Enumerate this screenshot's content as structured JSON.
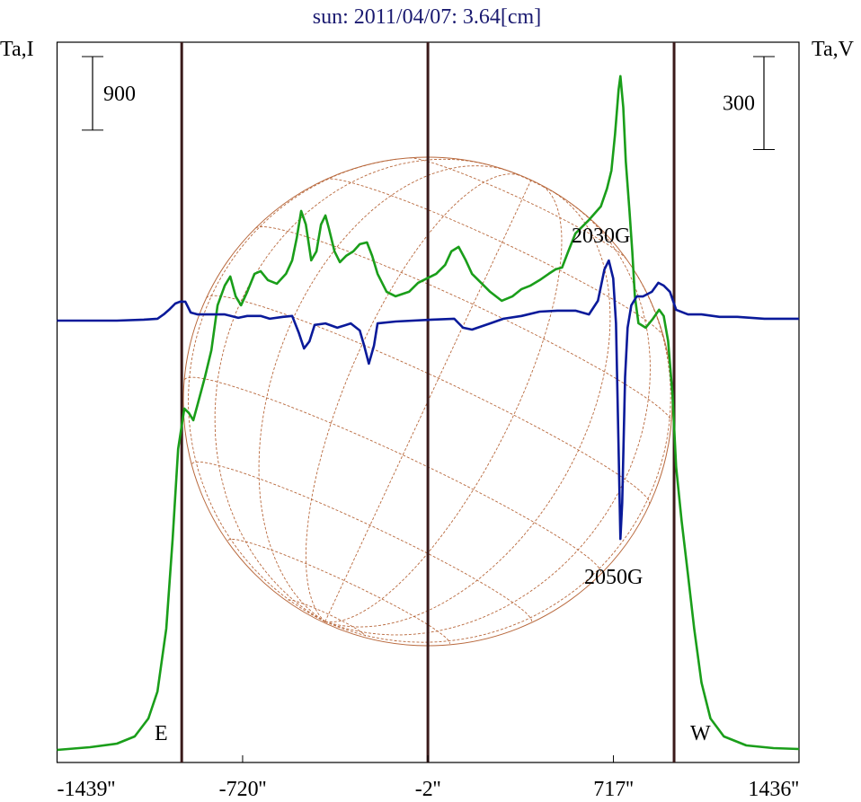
{
  "chart_data": {
    "type": "line",
    "title": "sun: 2011/04/07: 3.64[cm]",
    "ylabel": "Ta,I",
    "y2label": "Ta,V",
    "xlim": [
      -1439,
      1436
    ],
    "xticks": [
      {
        "value": -1439,
        "label": "-1439''"
      },
      {
        "value": -720,
        "label": "-720''"
      },
      {
        "value": -2,
        "label": "-2''"
      },
      {
        "value": 717,
        "label": "717''"
      },
      {
        "value": 1436,
        "label": "1436''"
      }
    ],
    "ylim": [
      0,
      8820
    ],
    "y2lim": [
      -1430,
      896
    ],
    "scale_bars": [
      {
        "value": 900,
        "axis": "y"
      },
      {
        "value": 300,
        "axis": "y2"
      }
    ],
    "limb_lines": [
      -956,
      -2,
      952
    ],
    "annotations": [
      "2030G",
      "2050G",
      "E",
      "W"
    ],
    "series": [
      {
        "name": "I",
        "color": "#1a9e1a",
        "axis": "y",
        "x": [
          -1439,
          -1312,
          -1207,
          -1138,
          -1085,
          -1050,
          -1016,
          -991,
          -970,
          -946,
          -928,
          -911,
          -894,
          -866,
          -841,
          -817,
          -789,
          -768,
          -747,
          -726,
          -702,
          -674,
          -650,
          -622,
          -587,
          -552,
          -528,
          -510,
          -493,
          -475,
          -454,
          -434,
          -416,
          -399,
          -385,
          -364,
          -343,
          -319,
          -291,
          -266,
          -238,
          -218,
          -197,
          -162,
          -127,
          -75,
          -40,
          -5,
          30,
          65,
          89,
          117,
          145,
          169,
          204,
          239,
          284,
          326,
          361,
          396,
          431,
          466,
          493,
          518,
          542,
          570,
          622,
          668,
          692,
          709,
          723,
          737,
          744,
          755,
          765,
          779,
          790,
          800,
          814,
          842,
          870,
          894,
          912,
          929,
          946,
          960,
          981,
          1006,
          1030,
          1058,
          1093,
          1145,
          1232,
          1337,
          1436
        ],
        "values": [
          154,
          187,
          231,
          319,
          539,
          869,
          1639,
          2739,
          3839,
          4334,
          4279,
          4191,
          4389,
          4719,
          5049,
          5599,
          5841,
          5951,
          5709,
          5599,
          5764,
          5984,
          6017,
          5907,
          5863,
          5984,
          6149,
          6424,
          6754,
          6589,
          6149,
          6259,
          6589,
          6699,
          6534,
          6259,
          6127,
          6204,
          6259,
          6347,
          6369,
          6204,
          5984,
          5764,
          5709,
          5764,
          5874,
          5929,
          5984,
          6094,
          6259,
          6314,
          6149,
          5984,
          5874,
          5764,
          5654,
          5709,
          5797,
          5841,
          5907,
          5984,
          6039,
          6061,
          6259,
          6479,
          6644,
          6809,
          7029,
          7249,
          7689,
          8239,
          8404,
          8019,
          7359,
          6754,
          6259,
          5709,
          5379,
          5324,
          5434,
          5544,
          5467,
          5159,
          4499,
          3619,
          2959,
          2299,
          1639,
          979,
          539,
          319,
          209,
          176,
          165
        ]
      },
      {
        "name": "V",
        "color": "#0a1a9a",
        "axis": "y2",
        "x": [
          -1439,
          -1207,
          -1103,
          -1050,
          -1026,
          -1005,
          -981,
          -963,
          -942,
          -921,
          -894,
          -841,
          -789,
          -737,
          -702,
          -650,
          -615,
          -563,
          -528,
          -503,
          -482,
          -461,
          -441,
          -399,
          -353,
          -301,
          -266,
          -249,
          -231,
          -211,
          -197,
          -127,
          13,
          100,
          134,
          169,
          239,
          291,
          361,
          431,
          500,
          570,
          622,
          657,
          682,
          699,
          716,
          727,
          737,
          744,
          751,
          762,
          772,
          786,
          807,
          831,
          866,
          891,
          912,
          936,
          960,
          1006,
          1058,
          1128,
          1197,
          1302,
          1436
        ],
        "values": [
          -3,
          -3,
          0,
          3,
          17,
          32,
          52,
          58,
          58,
          23,
          17,
          17,
          17,
          6,
          12,
          12,
          3,
          9,
          12,
          -41,
          -93,
          -70,
          -17,
          -12,
          -26,
          -12,
          -35,
          -84,
          -142,
          -84,
          -12,
          -6,
          0,
          3,
          -26,
          -32,
          -12,
          3,
          12,
          26,
          29,
          29,
          17,
          61,
          162,
          191,
          133,
          -12,
          -418,
          -708,
          -592,
          -186,
          -26,
          46,
          75,
          75,
          90,
          119,
          110,
          90,
          32,
          17,
          17,
          9,
          9,
          3,
          3
        ]
      }
    ]
  }
}
